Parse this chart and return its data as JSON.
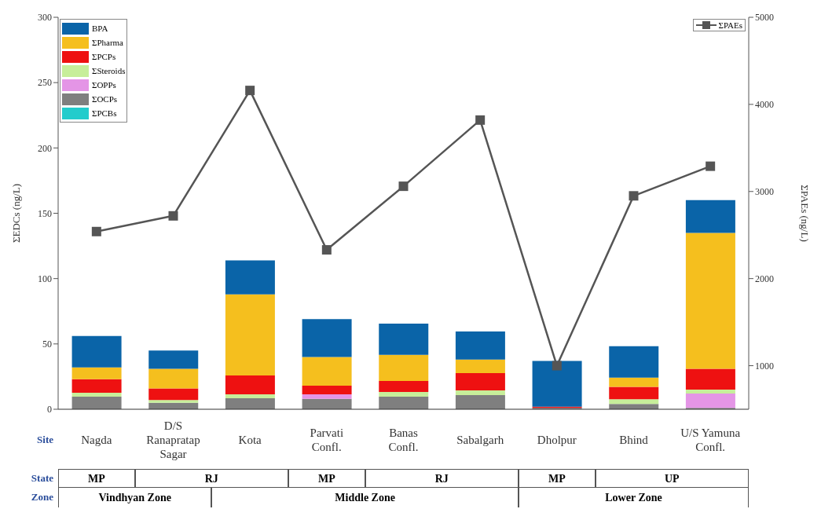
{
  "chart_data": {
    "type": "bar",
    "stacked": true,
    "ylabel": "ΣEDCs (ng/L)",
    "y2label": "ΣPAEs (ng/L)",
    "categories": [
      "Nagda",
      "D/S Ranapratap Sagar",
      "Kota",
      "Parvati Confl.",
      "Banas Confl.",
      "Sabalgarh",
      "Dholpur",
      "Bhind",
      "U/S Yamuna Confl."
    ],
    "series": [
      {
        "name": "ΣPCBs",
        "color": "#22cccc",
        "values": [
          0,
          0,
          0,
          0,
          0,
          0,
          0,
          0,
          0
        ]
      },
      {
        "name": "ΣOCPs",
        "color": "#7f7f7f",
        "values": [
          9.6,
          5,
          8.4,
          8,
          9.6,
          10.8,
          1,
          4,
          1
        ]
      },
      {
        "name": "ΣOPPs",
        "color": "#e495e6",
        "values": [
          0,
          0,
          0,
          3.4,
          0,
          0,
          0,
          0,
          11
        ]
      },
      {
        "name": "ΣSteroids",
        "color": "#c7ee9a",
        "values": [
          3,
          2,
          3,
          0,
          3.6,
          3.6,
          0,
          3.6,
          3
        ]
      },
      {
        "name": "ΣPCPs",
        "color": "#ee1111",
        "values": [
          10.4,
          9,
          14.5,
          6.6,
          8.4,
          13.3,
          1,
          9.6,
          16
        ]
      },
      {
        "name": "ΣPharma",
        "color": "#f5bf1e",
        "values": [
          9,
          15,
          62,
          22,
          20,
          10.3,
          0,
          7,
          104
        ]
      },
      {
        "name": "BPA",
        "color": "#0a64a8",
        "values": [
          24,
          14,
          26,
          29,
          24,
          21.5,
          35,
          24,
          25
        ]
      },
      {
        "name": "ΣPAEs",
        "type": "line",
        "axis": "y2",
        "color": "#555555",
        "values": [
          2540,
          2720,
          4160,
          2330,
          3060,
          3820,
          1000,
          2950,
          3290
        ]
      }
    ],
    "ylim": [
      0,
      300
    ],
    "yticks": [
      0,
      50,
      100,
      150,
      200,
      250,
      300
    ],
    "y2lim": [
      500,
      5000
    ],
    "y2ticks": [
      1000,
      2000,
      3000,
      4000,
      5000
    ],
    "marker": "square",
    "grid": false,
    "legend": "top left",
    "annotations": [
      "Site",
      "State",
      "Zone",
      "MP",
      "RJ",
      "MP",
      "RJ",
      "MP",
      "UP",
      "Vindhyan Zone",
      "Middle Zone",
      "Lower Zone"
    ]
  }
}
